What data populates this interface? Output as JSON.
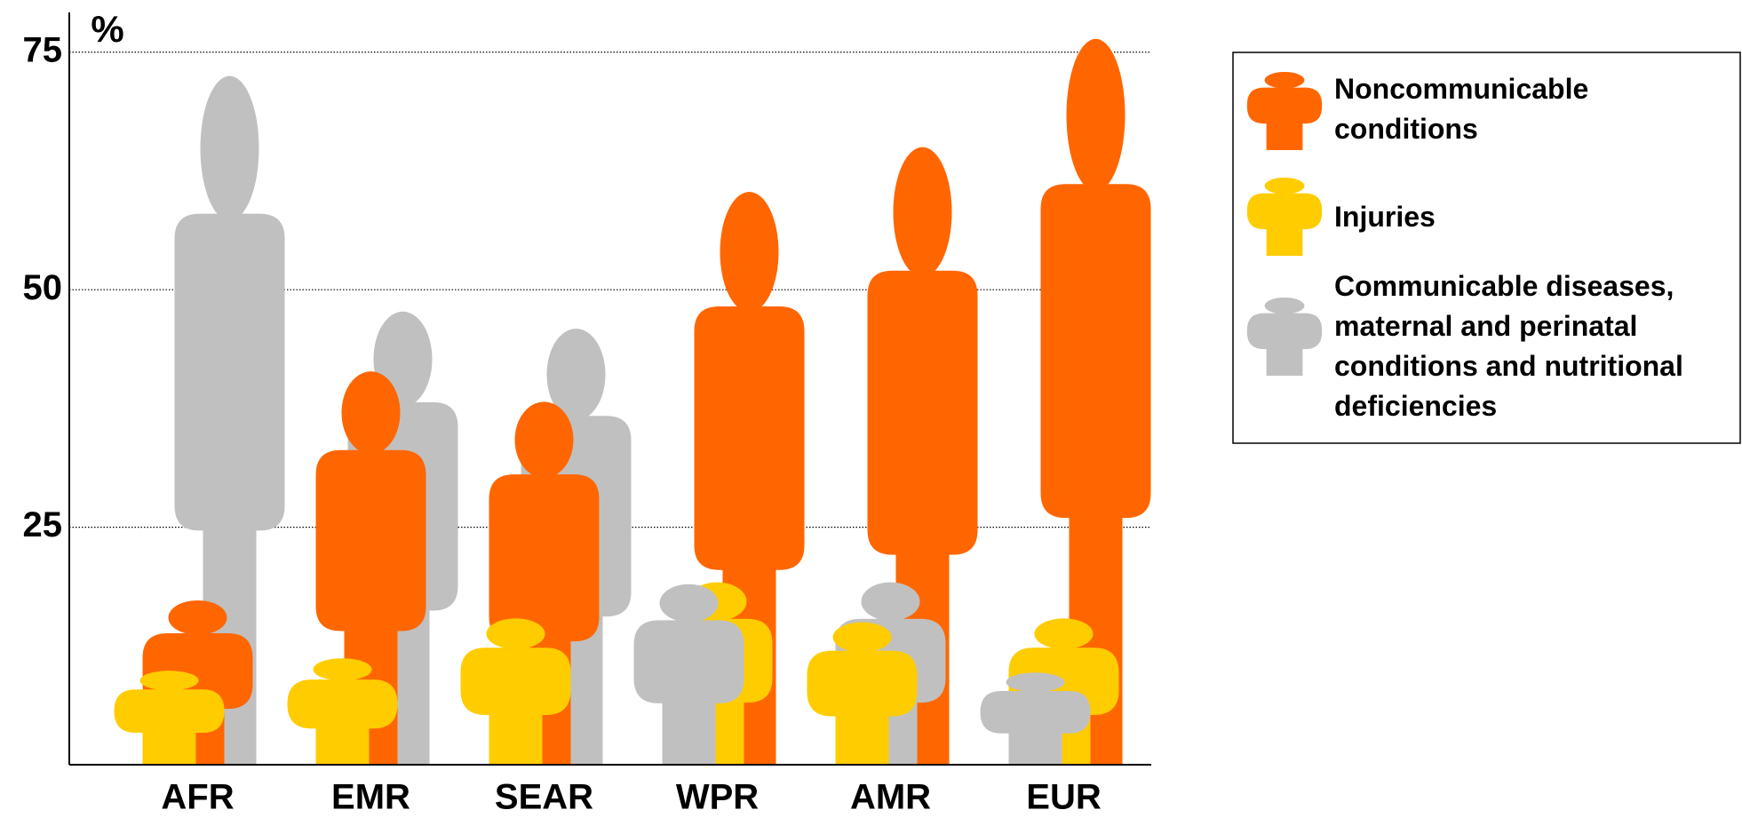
{
  "chart_data": {
    "type": "pictograph",
    "y_label": "%",
    "categories": [
      "AFR",
      "EMR",
      "SEAR",
      "WPR",
      "AMR",
      "EUR"
    ],
    "series": [
      {
        "name": "Noncommunicable conditions",
        "color": "#ff6600",
        "values": [
          17.3,
          41.4,
          38.2,
          60.3,
          65.0,
          76.4
        ]
      },
      {
        "name": "Injuries",
        "color": "#ffcc00",
        "values": [
          9.9,
          11.2,
          15.4,
          19.2,
          15.0,
          15.4
        ]
      },
      {
        "name": "Communicable diseases, maternal and perinatal conditions and nutritional deficiencies",
        "color": "#c0c0c0",
        "values": [
          72.5,
          47.7,
          45.9,
          19.0,
          19.2,
          9.7
        ]
      }
    ],
    "ylim": [
      0,
      79
    ],
    "yticks": [
      25,
      50,
      75
    ],
    "grid": true
  }
}
